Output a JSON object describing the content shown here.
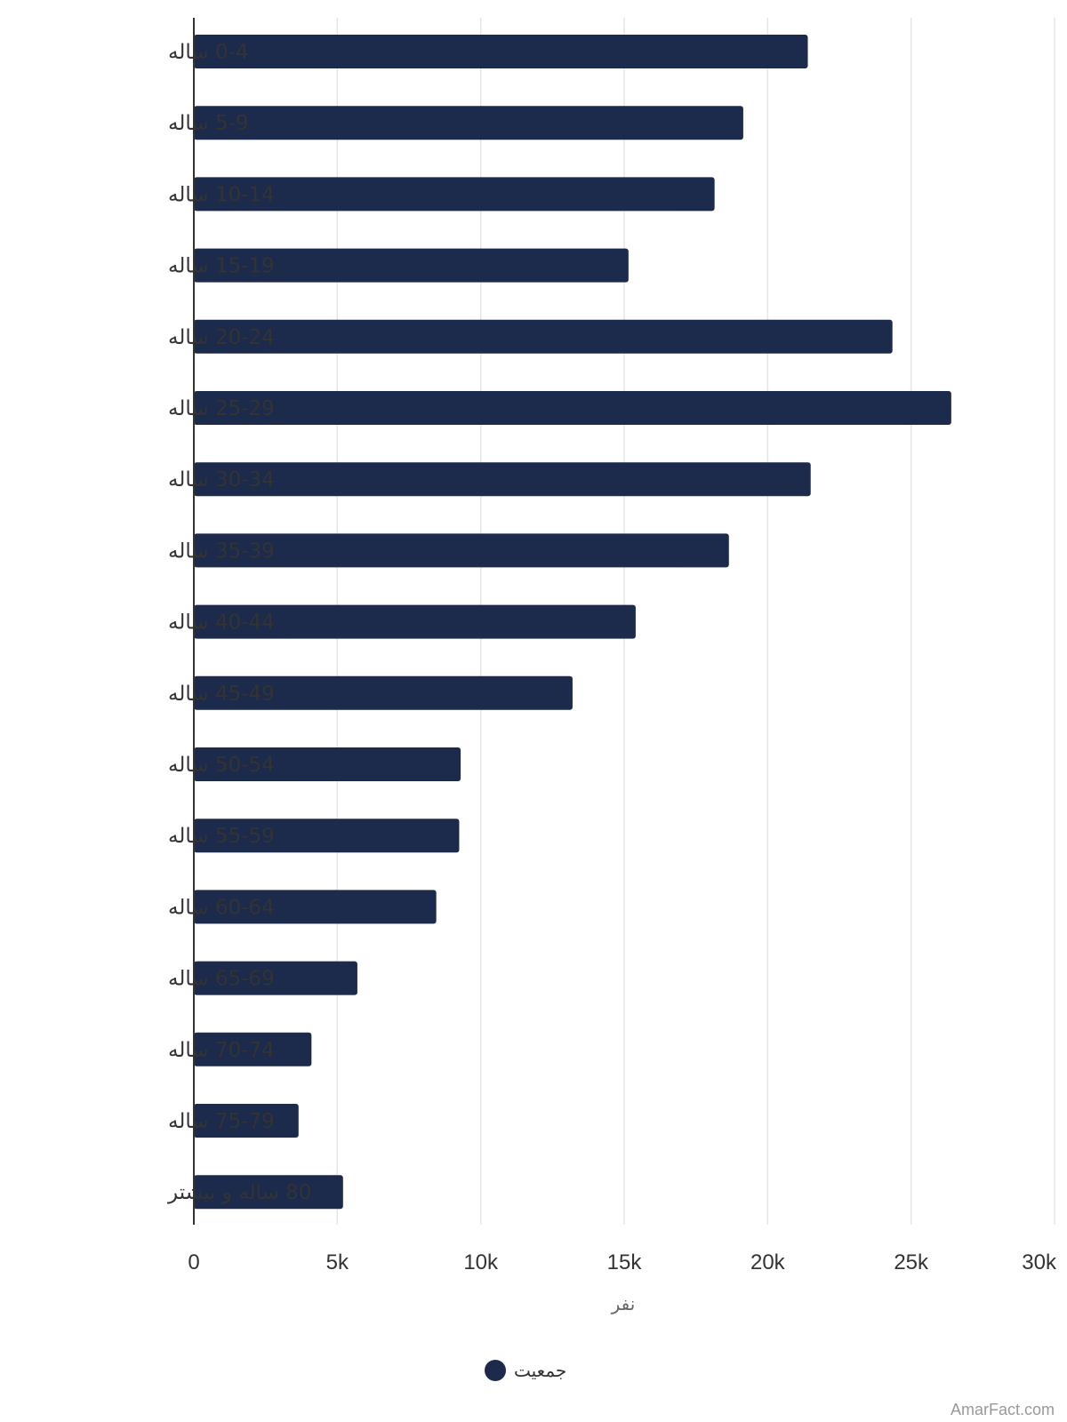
{
  "chart_data": {
    "type": "bar",
    "orientation": "horizontal",
    "categories": [
      "0-4 ساله",
      "5-9 ساله",
      "10-14 ساله",
      "15-19 ساله",
      "20-24 ساله",
      "25-29 ساله",
      "30-34 ساله",
      "35-39 ساله",
      "40-44 ساله",
      "45-49 ساله",
      "50-54 ساله",
      "55-59 ساله",
      "60-64 ساله",
      "65-69 ساله",
      "70-74 ساله",
      "75-79 ساله",
      "80 ساله و بیشتر"
    ],
    "series": [
      {
        "name": "جمعیت",
        "values": [
          21400,
          19150,
          18150,
          15150,
          24350,
          26400,
          21500,
          18650,
          15400,
          13200,
          9300,
          9250,
          8450,
          5700,
          4100,
          3650,
          5200
        ]
      }
    ],
    "xlabel": "نفر",
    "ylabel": "",
    "xlim": [
      0,
      30000
    ],
    "x_ticks": [
      0,
      5000,
      10000,
      15000,
      20000,
      25000,
      30000
    ],
    "x_tick_labels": [
      "0",
      "5k",
      "10k",
      "15k",
      "20k",
      "25k",
      "30k"
    ],
    "grid": true,
    "legend_position": "bottom-center"
  },
  "colors": {
    "bar": "#1c2a4b",
    "grid": "#e6e6e6",
    "axis": "#333333"
  },
  "credit": "AmarFact.com"
}
